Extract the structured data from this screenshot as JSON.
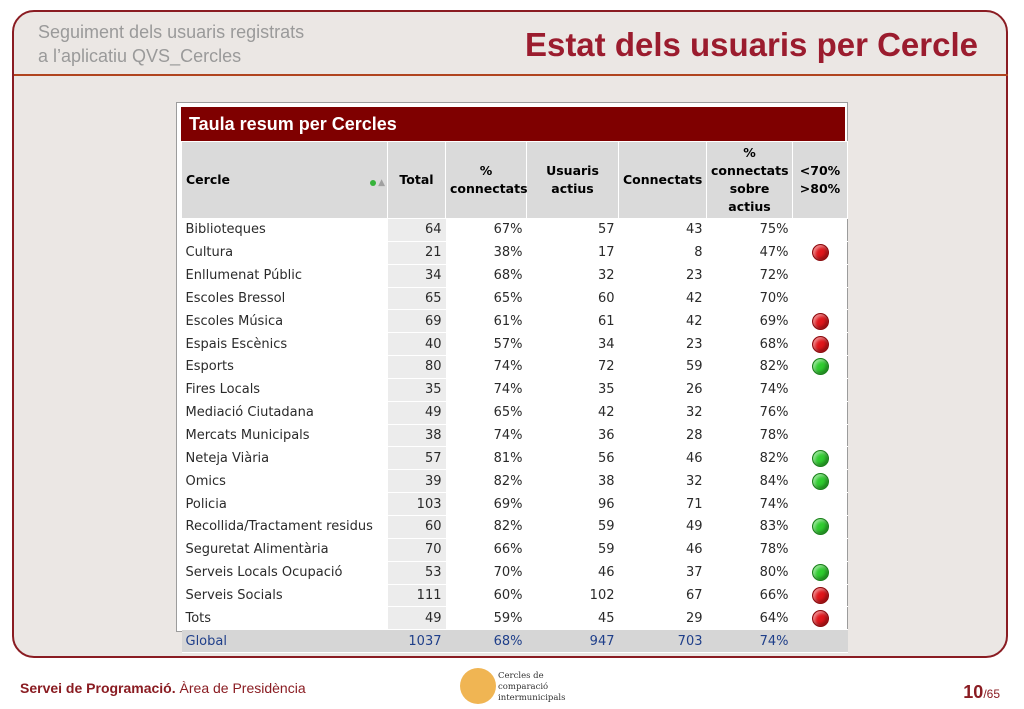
{
  "header": {
    "subtitle_line1": "Seguiment dels usuaris registrats",
    "subtitle_line2": "a l’aplicatiu QVS_Cercles",
    "title": "Estat dels usuaris per Cercle"
  },
  "table": {
    "title": "Taula resum per Cercles",
    "columns": [
      "Cercle",
      "Total",
      "% connectats",
      "Usuaris actius",
      "Connectats",
      "% connectats sobre actius",
      "<70% >80%"
    ],
    "rows": [
      {
        "cercle": "Biblioteques",
        "total": "64",
        "pct": "67%",
        "actius": "57",
        "connectats": "43",
        "pct_actius": "75%",
        "indicator": "none"
      },
      {
        "cercle": "Cultura",
        "total": "21",
        "pct": "38%",
        "actius": "17",
        "connectats": "8",
        "pct_actius": "47%",
        "indicator": "red"
      },
      {
        "cercle": "Enllumenat Públic",
        "total": "34",
        "pct": "68%",
        "actius": "32",
        "connectats": "23",
        "pct_actius": "72%",
        "indicator": "none"
      },
      {
        "cercle": "Escoles Bressol",
        "total": "65",
        "pct": "65%",
        "actius": "60",
        "connectats": "42",
        "pct_actius": "70%",
        "indicator": "none"
      },
      {
        "cercle": "Escoles Música",
        "total": "69",
        "pct": "61%",
        "actius": "61",
        "connectats": "42",
        "pct_actius": "69%",
        "indicator": "red"
      },
      {
        "cercle": "Espais Escènics",
        "total": "40",
        "pct": "57%",
        "actius": "34",
        "connectats": "23",
        "pct_actius": "68%",
        "indicator": "red"
      },
      {
        "cercle": "Esports",
        "total": "80",
        "pct": "74%",
        "actius": "72",
        "connectats": "59",
        "pct_actius": "82%",
        "indicator": "green"
      },
      {
        "cercle": "Fires Locals",
        "total": "35",
        "pct": "74%",
        "actius": "35",
        "connectats": "26",
        "pct_actius": "74%",
        "indicator": "none"
      },
      {
        "cercle": "Mediació Ciutadana",
        "total": "49",
        "pct": "65%",
        "actius": "42",
        "connectats": "32",
        "pct_actius": "76%",
        "indicator": "none"
      },
      {
        "cercle": "Mercats Municipals",
        "total": "38",
        "pct": "74%",
        "actius": "36",
        "connectats": "28",
        "pct_actius": "78%",
        "indicator": "none"
      },
      {
        "cercle": "Neteja Viària",
        "total": "57",
        "pct": "81%",
        "actius": "56",
        "connectats": "46",
        "pct_actius": "82%",
        "indicator": "green"
      },
      {
        "cercle": "Omics",
        "total": "39",
        "pct": "82%",
        "actius": "38",
        "connectats": "32",
        "pct_actius": "84%",
        "indicator": "green"
      },
      {
        "cercle": "Policia",
        "total": "103",
        "pct": "69%",
        "actius": "96",
        "connectats": "71",
        "pct_actius": "74%",
        "indicator": "none"
      },
      {
        "cercle": "Recollida/Tractament residus",
        "total": "60",
        "pct": "82%",
        "actius": "59",
        "connectats": "49",
        "pct_actius": "83%",
        "indicator": "green"
      },
      {
        "cercle": "Seguretat Alimentària",
        "total": "70",
        "pct": "66%",
        "actius": "59",
        "connectats": "46",
        "pct_actius": "78%",
        "indicator": "none"
      },
      {
        "cercle": "Serveis Locals Ocupació",
        "total": "53",
        "pct": "70%",
        "actius": "46",
        "connectats": "37",
        "pct_actius": "80%",
        "indicator": "green"
      },
      {
        "cercle": "Serveis Socials",
        "total": "111",
        "pct": "60%",
        "actius": "102",
        "connectats": "67",
        "pct_actius": "66%",
        "indicator": "red"
      },
      {
        "cercle": "Tots",
        "total": "49",
        "pct": "59%",
        "actius": "45",
        "connectats": "29",
        "pct_actius": "64%",
        "indicator": "red"
      }
    ],
    "global": {
      "cercle": "Global",
      "total": "1037",
      "pct": "68%",
      "actius": "947",
      "connectats": "703",
      "pct_actius": "74%"
    }
  },
  "footer": {
    "org_bold": "Servei de Programació.",
    "org_rest": " Àrea de Presidència",
    "logo_line1": "Cercles de comparació",
    "logo_line2": "intermunicipals",
    "page": "10",
    "page_total": "/65"
  },
  "colors": {
    "brand": "#8a1c22",
    "title": "#9b1c2e",
    "table_header": "#7f0000",
    "indicator_red": "#e0161b",
    "indicator_green": "#2fcc2f"
  }
}
